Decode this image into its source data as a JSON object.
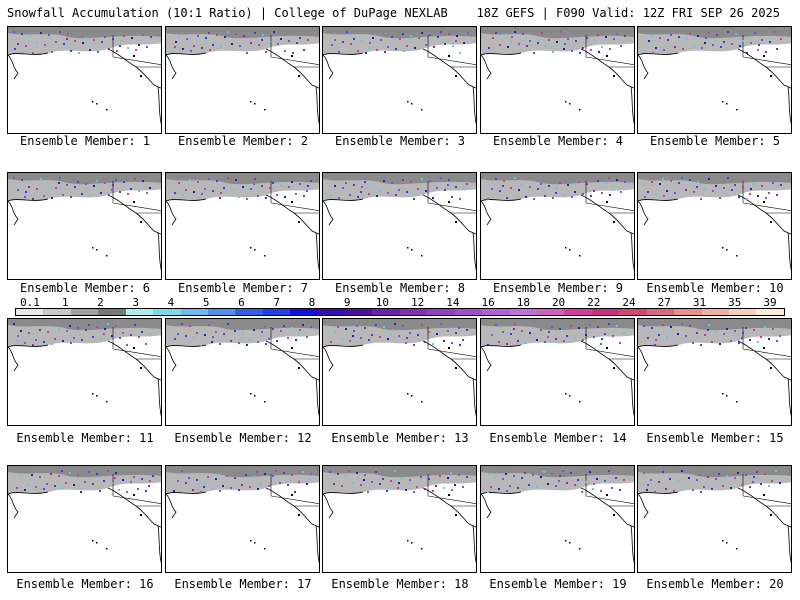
{
  "header": {
    "title_left": "Snowfall Accumulation (10:1 Ratio) | College of DuPage NEXLAB",
    "title_right": "18Z GEFS | F090 Valid: 12Z FRI SEP 26 2025"
  },
  "panels": [
    {
      "label": "Ensemble Member: 1"
    },
    {
      "label": "Ensemble Member: 2"
    },
    {
      "label": "Ensemble Member: 3"
    },
    {
      "label": "Ensemble Member: 4"
    },
    {
      "label": "Ensemble Member: 5"
    },
    {
      "label": "Ensemble Member: 6"
    },
    {
      "label": "Ensemble Member: 7"
    },
    {
      "label": "Ensemble Member: 8"
    },
    {
      "label": "Ensemble Member: 9"
    },
    {
      "label": "Ensemble Member: 10"
    },
    {
      "label": "Ensemble Member: 11"
    },
    {
      "label": "Ensemble Member: 12"
    },
    {
      "label": "Ensemble Member: 13"
    },
    {
      "label": "Ensemble Member: 14"
    },
    {
      "label": "Ensemble Member: 15"
    },
    {
      "label": "Ensemble Member: 16"
    },
    {
      "label": "Ensemble Member: 17"
    },
    {
      "label": "Ensemble Member: 18"
    },
    {
      "label": "Ensemble Member: 19"
    },
    {
      "label": "Ensemble Member: 20"
    }
  ],
  "colorbar": {
    "labels": [
      "0.1",
      "1",
      "2",
      "3",
      "4",
      "5",
      "6",
      "7",
      "8",
      "9",
      "10",
      "12",
      "14",
      "16",
      "18",
      "20",
      "22",
      "24",
      "27",
      "31",
      "35",
      "39"
    ],
    "colors": [
      "#e8e8e8",
      "#c8c8c8",
      "#a0a0a0",
      "#787878",
      "#a8f0f0",
      "#80d8f0",
      "#70b8f0",
      "#5090e8",
      "#3060e8",
      "#2040f0",
      "#1010e0",
      "#3010b0",
      "#4a10a0",
      "#6a20a8",
      "#8030b0",
      "#9040c0",
      "#a050c8",
      "#b060d0",
      "#c070d8",
      "#d060c0",
      "#d04098",
      "#c83080",
      "#d04870",
      "#d86880",
      "#e89090",
      "#f0b0a0",
      "#f8d0b8",
      "#fcecd8"
    ]
  }
}
